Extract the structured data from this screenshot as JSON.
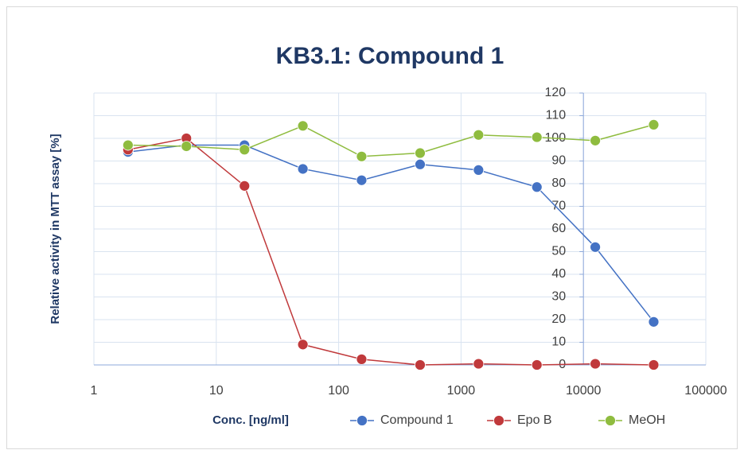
{
  "chart_data": {
    "type": "line",
    "title": "KB3.1: Compound 1",
    "xlabel": "Conc. [ng/ml]",
    "ylabel": "Relative activity in MTT assay [%]",
    "x": [
      1.9,
      5.7,
      17,
      51,
      154,
      463,
      1389,
      4167,
      12500,
      37500
    ],
    "series": [
      {
        "name": "Compound 1",
        "color": "#4472c4",
        "values": [
          94,
          97,
          97,
          86.5,
          81.5,
          88.5,
          86,
          78.5,
          52,
          19
        ]
      },
      {
        "name": "Epo B",
        "color": "#c0393b",
        "values": [
          95,
          100,
          79,
          9,
          2.5,
          0,
          0.5,
          0,
          0.5,
          0
        ]
      },
      {
        "name": "MeOH",
        "color": "#8fbc3f",
        "values": [
          97,
          96.5,
          95,
          105.5,
          92,
          93.5,
          101.5,
          100.5,
          99,
          106
        ]
      }
    ],
    "xscale": "log",
    "xlim": [
      1,
      100000
    ],
    "xticks": [
      1,
      10,
      100,
      1000,
      10000,
      100000
    ],
    "ylim": [
      0,
      120
    ],
    "yticks": [
      0,
      10,
      20,
      30,
      40,
      50,
      60,
      70,
      80,
      90,
      100,
      110,
      120
    ],
    "yaxis_at_x": 10000,
    "grid": true,
    "legend": "bottom"
  }
}
